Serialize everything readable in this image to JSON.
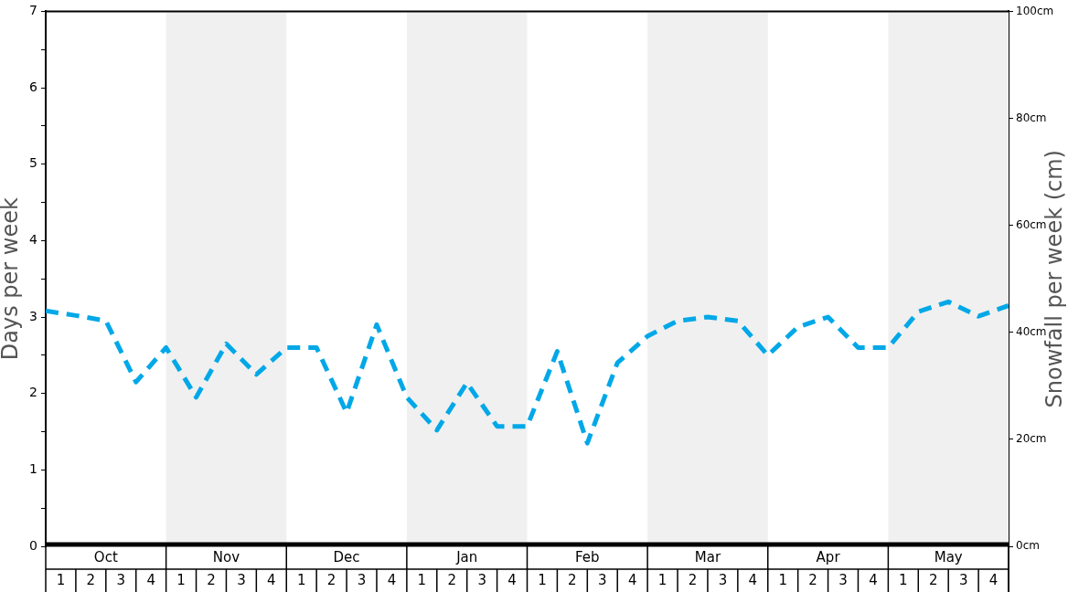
{
  "chart_data": {
    "type": "line",
    "ylabel": "Days per week",
    "y2label": "Snowfall per week (cm)",
    "categories": [
      null,
      null,
      null,
      null,
      null,
      null,
      null,
      null,
      null,
      null,
      null,
      null,
      null,
      null,
      null,
      null,
      null,
      null,
      null,
      null,
      null,
      null,
      null,
      null,
      null,
      null,
      null,
      null,
      null,
      null,
      null,
      null,
      null
    ],
    "series": [
      {
        "color": "#00a8e8",
        "values": [
          3.08,
          3.02,
          2.95,
          2.15,
          2.6,
          1.95,
          2.65,
          2.25,
          2.6,
          2.6,
          1.75,
          2.9,
          1.95,
          1.52,
          2.14,
          1.57,
          1.57,
          2.55,
          1.35,
          2.4,
          2.75,
          2.95,
          3.0,
          2.95,
          2.5,
          2.87,
          3.0,
          2.6,
          2.6,
          3.07,
          3.2,
          3.01,
          3.15
        ]
      }
    ],
    "annotations": [
      "Oct",
      "Nov",
      "Dec",
      "Jan",
      "Feb",
      "Mar",
      "Apr",
      "May",
      "1",
      "2",
      "3",
      "4",
      "1",
      "2",
      "3",
      "4",
      "1",
      "2",
      "3",
      "4",
      "1",
      "2",
      "3",
      "4",
      "1",
      "2",
      "3",
      "4",
      "1",
      "2",
      "3",
      "4",
      "1",
      "2",
      "3",
      "4",
      "1",
      "2",
      "3",
      "4"
    ],
    "ylim": [
      0,
      7
    ],
    "yticks": [
      0,
      {
        "value": 0.5,
        "label": null
      },
      1,
      {
        "value": 1.5,
        "label": null
      },
      2,
      {
        "value": 2.5,
        "label": null
      },
      3,
      {
        "value": 3.5,
        "label": null
      },
      4,
      {
        "value": 4.5,
        "label": null
      },
      5,
      {
        "value": 5.5,
        "label": null
      },
      6,
      {
        "value": 6.5,
        "label": null
      },
      7
    ],
    "y2lim": [
      0,
      100
    ],
    "y2ticks": [
      {
        "value": 0,
        "label": "0cm"
      },
      {
        "value": 20,
        "label": "20cm"
      },
      {
        "value": 40,
        "label": "40cm"
      },
      {
        "value": 60,
        "label": "60cm"
      },
      {
        "value": 80,
        "label": "80cm"
      },
      {
        "value": 100,
        "label": "100cm"
      }
    ],
    "grid": false,
    "legend": false,
    "marker": "none",
    "line_style": "dashed"
  }
}
